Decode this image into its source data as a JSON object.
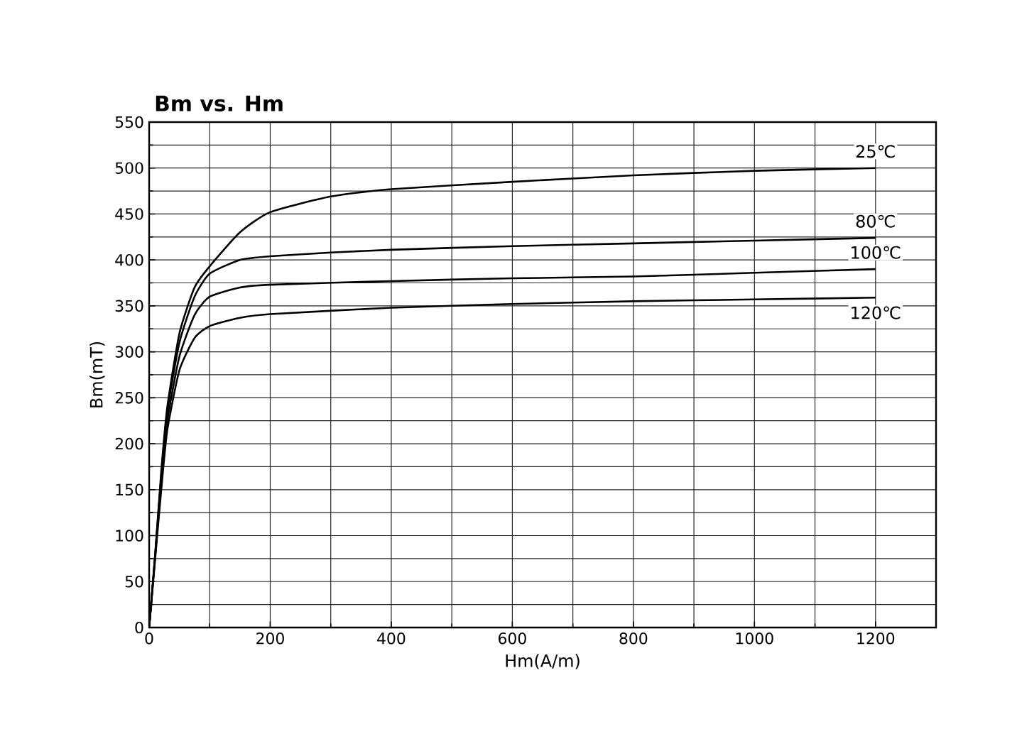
{
  "chart_data": {
    "type": "line",
    "title": "Bm vs. Hm",
    "xlabel": "Hm(A/m)",
    "ylabel": "Bm(mT)",
    "xlim": [
      0,
      1300
    ],
    "ylim": [
      0,
      550
    ],
    "xticks": [
      0,
      200,
      400,
      600,
      800,
      1000,
      1200
    ],
    "yticks": [
      0,
      50,
      100,
      150,
      200,
      250,
      300,
      350,
      400,
      450,
      500,
      550
    ],
    "grid": true,
    "series": [
      {
        "name": "25℃",
        "color": "#000000",
        "x": [
          0,
          10,
          20,
          30,
          50,
          75,
          100,
          150,
          200,
          300,
          400,
          600,
          800,
          1000,
          1200
        ],
        "values": [
          0,
          80,
          170,
          240,
          320,
          370,
          393,
          430,
          452,
          469,
          477,
          485,
          492,
          497,
          500
        ]
      },
      {
        "name": "80℃",
        "color": "#000000",
        "x": [
          0,
          10,
          20,
          30,
          50,
          75,
          100,
          150,
          200,
          300,
          400,
          600,
          800,
          1000,
          1200
        ],
        "values": [
          0,
          80,
          165,
          235,
          310,
          360,
          385,
          400,
          404,
          408,
          411,
          415,
          418,
          421,
          424
        ]
      },
      {
        "name": "100℃",
        "color": "#000000",
        "x": [
          0,
          10,
          20,
          30,
          50,
          75,
          100,
          150,
          200,
          400,
          600,
          800,
          1000,
          1200
        ],
        "values": [
          0,
          78,
          160,
          225,
          295,
          340,
          360,
          370,
          373,
          377,
          380,
          382,
          386,
          390
        ]
      },
      {
        "name": "120℃",
        "color": "#000000",
        "x": [
          0,
          10,
          20,
          30,
          50,
          75,
          100,
          150,
          200,
          400,
          600,
          800,
          1000,
          1200
        ],
        "values": [
          0,
          75,
          150,
          215,
          280,
          315,
          328,
          337,
          341,
          348,
          352,
          355,
          357,
          359
        ]
      }
    ]
  }
}
